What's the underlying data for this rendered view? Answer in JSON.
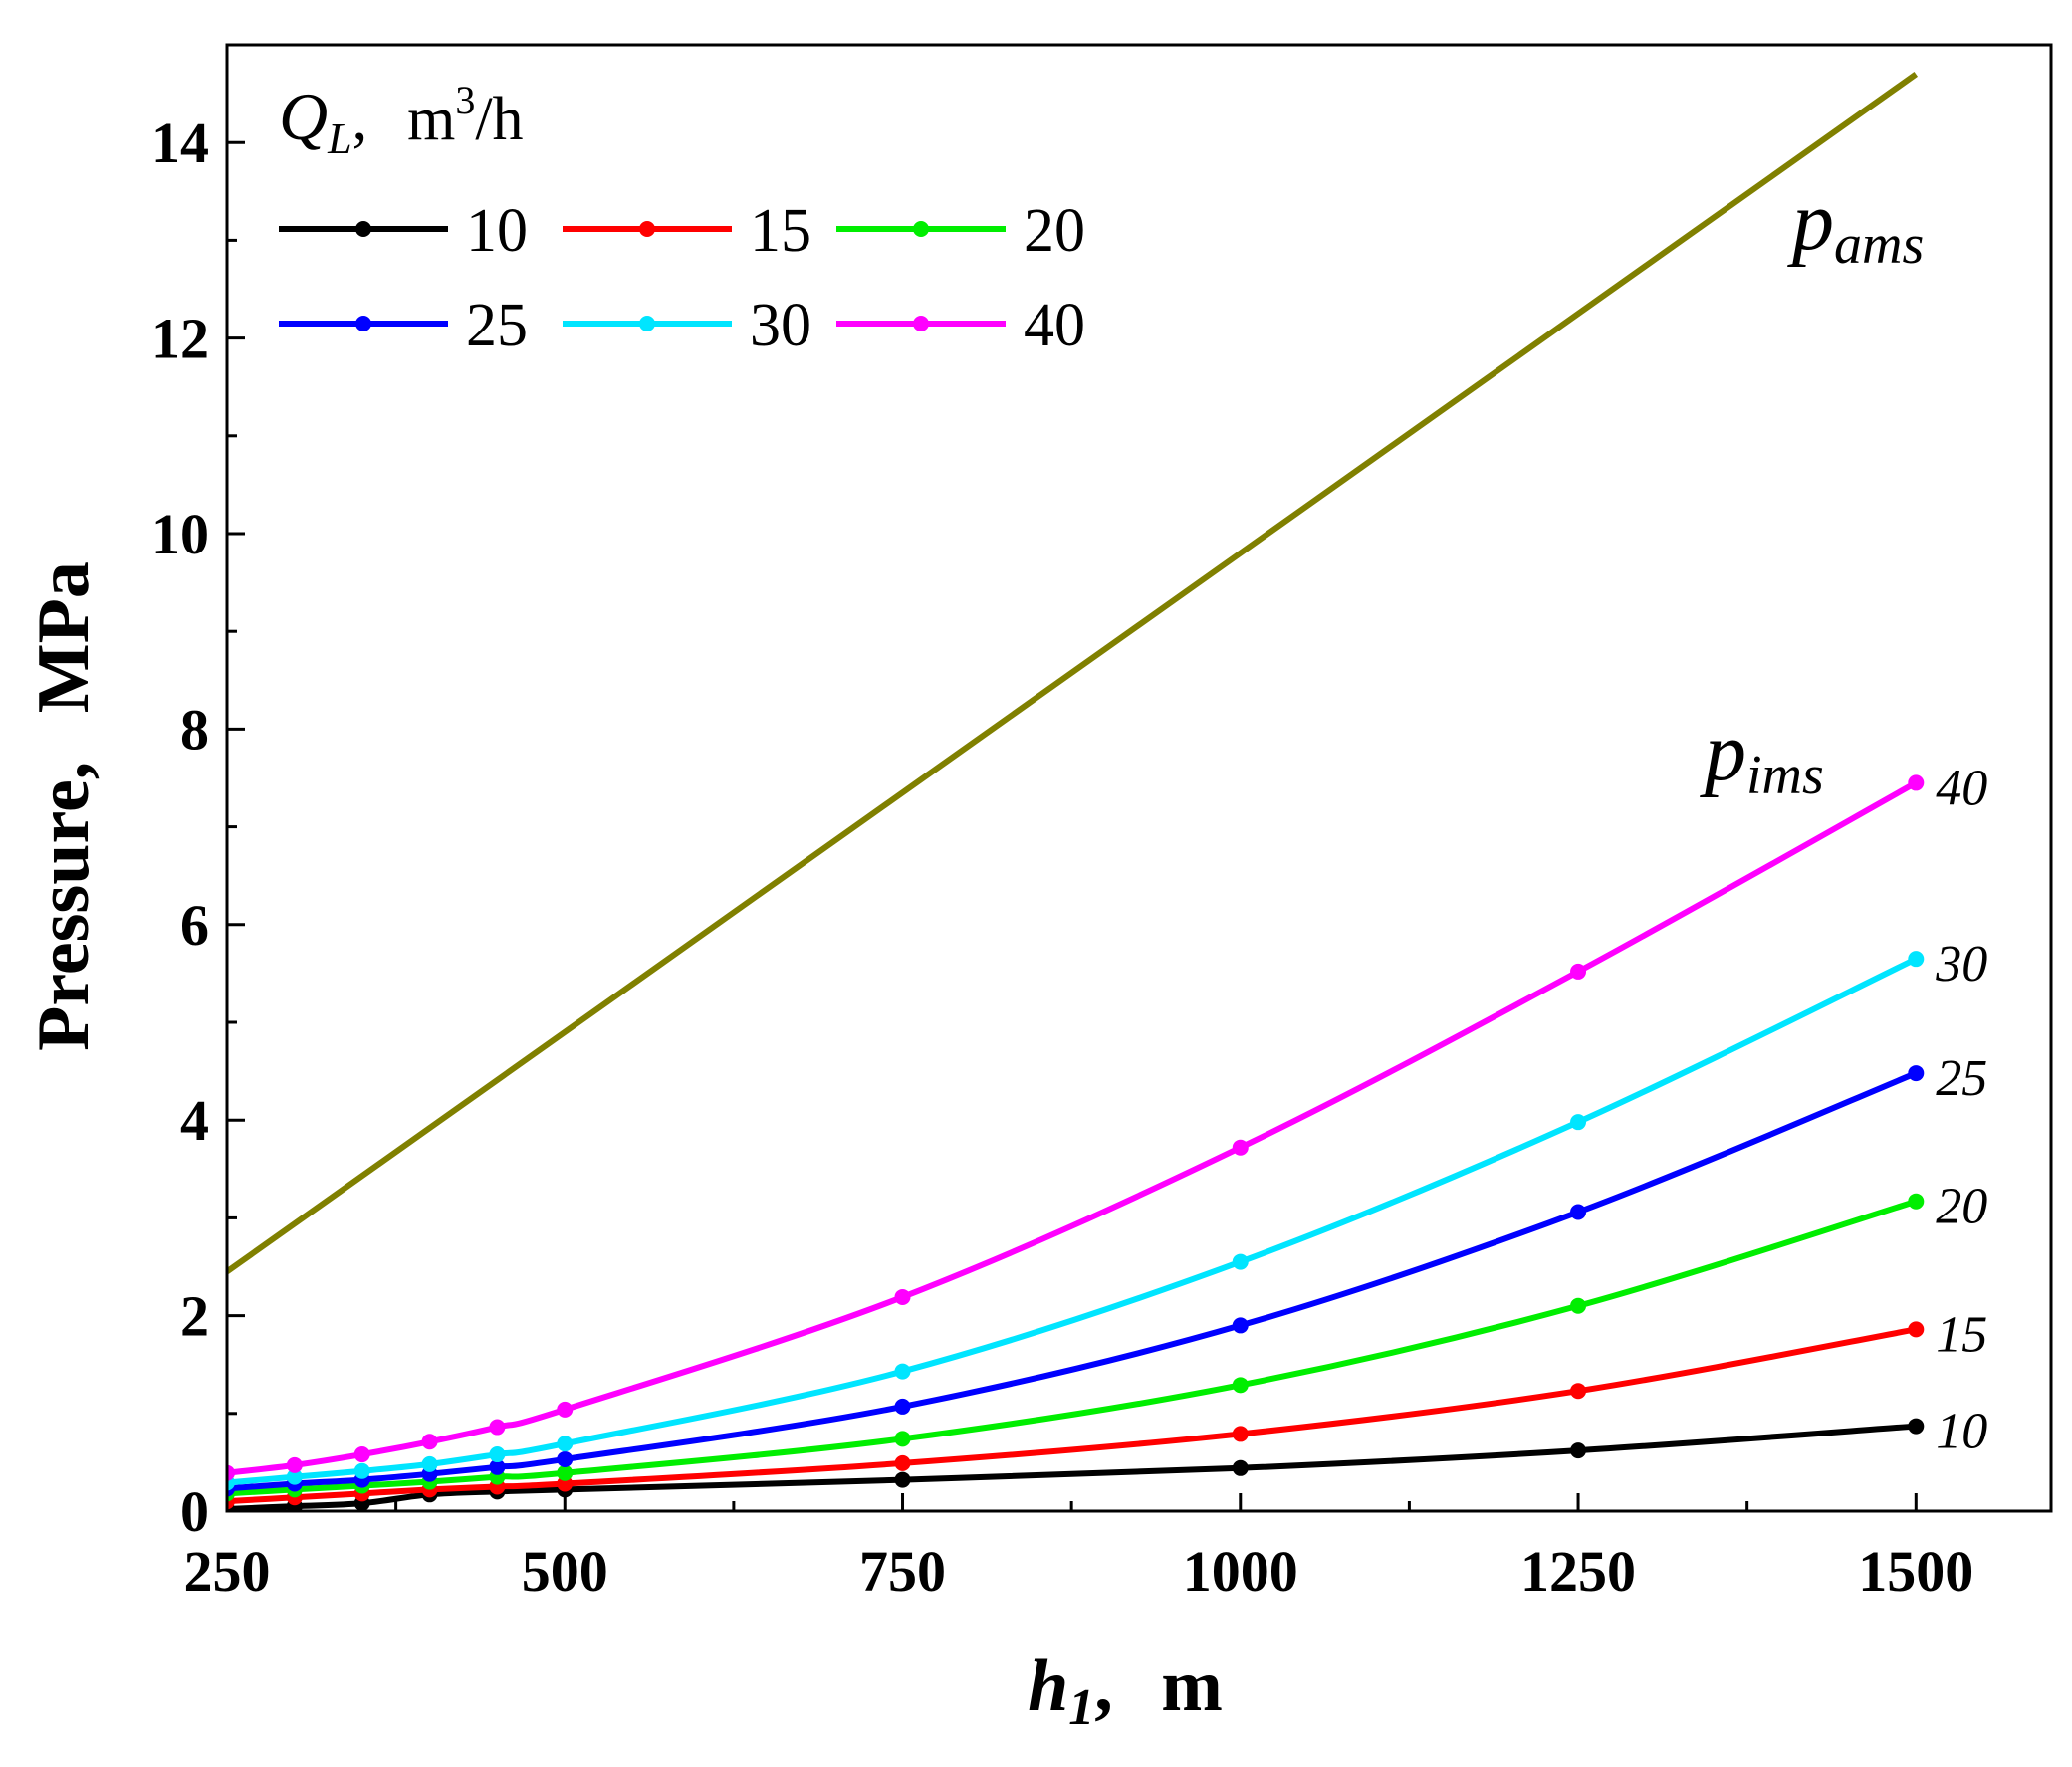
{
  "chart_data": {
    "type": "line",
    "xlabel": "h",
    "xlabel_sub": "1",
    "xlabel_unit": "m",
    "ylabel": "Pressure",
    "ylabel_unit": "MPa",
    "xlim": [
      250,
      1600
    ],
    "ylim": [
      0,
      15
    ],
    "xticks": [
      250,
      500,
      750,
      1000,
      1250,
      1500
    ],
    "yticks": [
      0,
      2,
      4,
      6,
      8,
      10,
      12,
      14
    ],
    "legend": {
      "title_symbol": "Q",
      "title_sub": "L",
      "title_unit": "m",
      "title_unit_sup": "3",
      "title_unit_tail": "/h",
      "position": "top-left"
    },
    "annotations": {
      "pams": {
        "base": "p",
        "sub": "ams"
      },
      "pims": {
        "base": "p",
        "sub": "ims"
      }
    },
    "line_pams": {
      "name": "pams",
      "color": "#808000",
      "x": [
        250,
        1500
      ],
      "y": [
        2.45,
        14.7
      ]
    },
    "series": [
      {
        "name": "10",
        "color": "#000000",
        "x": [
          250,
          300,
          350,
          400,
          450,
          500,
          750,
          1000,
          1250,
          1500
        ],
        "y": [
          0.02,
          0.05,
          0.08,
          0.17,
          0.2,
          0.22,
          0.32,
          0.44,
          0.62,
          0.87
        ]
      },
      {
        "name": "15",
        "color": "#ff0000",
        "x": [
          250,
          300,
          350,
          400,
          450,
          500,
          750,
          1000,
          1250,
          1500
        ],
        "y": [
          0.1,
          0.14,
          0.18,
          0.22,
          0.25,
          0.28,
          0.49,
          0.79,
          1.23,
          1.86
        ]
      },
      {
        "name": "20",
        "color": "#00ee00",
        "x": [
          250,
          300,
          350,
          400,
          450,
          500,
          750,
          1000,
          1250,
          1500
        ],
        "y": [
          0.18,
          0.22,
          0.26,
          0.3,
          0.35,
          0.39,
          0.74,
          1.29,
          2.1,
          3.17
        ]
      },
      {
        "name": "25",
        "color": "#0000ff",
        "x": [
          250,
          300,
          350,
          400,
          450,
          500,
          750,
          1000,
          1250,
          1500
        ],
        "y": [
          0.23,
          0.28,
          0.32,
          0.38,
          0.45,
          0.53,
          1.07,
          1.9,
          3.06,
          4.48
        ]
      },
      {
        "name": "30",
        "color": "#00e5ff",
        "x": [
          250,
          300,
          350,
          400,
          450,
          500,
          750,
          1000,
          1250,
          1500
        ],
        "y": [
          0.29,
          0.35,
          0.41,
          0.48,
          0.58,
          0.69,
          1.43,
          2.55,
          3.98,
          5.65
        ]
      },
      {
        "name": "40",
        "color": "#ff00ff",
        "x": [
          250,
          300,
          350,
          400,
          450,
          500,
          750,
          1000,
          1250,
          1500
        ],
        "y": [
          0.39,
          0.47,
          0.58,
          0.71,
          0.86,
          1.04,
          2.19,
          3.72,
          5.52,
          7.45
        ]
      }
    ]
  }
}
